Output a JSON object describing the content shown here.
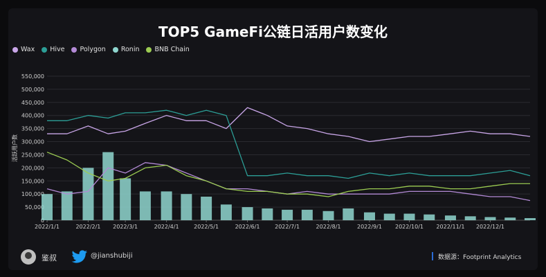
{
  "title": "TOP5 GameFi公链日活用户数变化",
  "colors": {
    "Wax": "#c9a6e8",
    "Hive": "#2c9e96",
    "Polygon": "#b38ad6",
    "Ronin": "#8fd6cf",
    "BNB Chain": "#9ccc52",
    "grid": "#2a2a30",
    "axis_text": "#cfcfcf",
    "background": "#141418"
  },
  "footer": {
    "author": "鉴叔",
    "twitter_handle": "@jianshubiji",
    "source": "数据源：Footprint Analytics"
  },
  "chart_data": {
    "type": "line",
    "ylabel": "活跃用户数",
    "xlabel": "",
    "ylim": [
      0,
      550000
    ],
    "yticks": [
      0,
      50000,
      100000,
      150000,
      200000,
      250000,
      300000,
      350000,
      400000,
      450000,
      500000,
      550000
    ],
    "ytick_labels": [
      "0",
      "50,000",
      "100,000",
      "150,000",
      "200,000",
      "250,000",
      "300,000",
      "350,000",
      "400,000",
      "450,000",
      "500,000",
      "550,000"
    ],
    "xticks": [
      "2022/1/1",
      "2022/2/1",
      "2022/3/1",
      "2022/4/1",
      "2022/5/1",
      "2022/6/1",
      "2022/7/1",
      "2022/8/1",
      "2022/9/1",
      "2022/10/1",
      "2022/11/1",
      "2022/12/1"
    ],
    "grid": true,
    "legend_position": "top-left",
    "x_dates": [
      "2022-01-01",
      "2022-01-16",
      "2022-02-01",
      "2022-02-16",
      "2022-03-01",
      "2022-03-16",
      "2022-04-01",
      "2022-04-16",
      "2022-05-01",
      "2022-05-16",
      "2022-06-01",
      "2022-06-16",
      "2022-07-01",
      "2022-07-16",
      "2022-08-01",
      "2022-08-16",
      "2022-09-01",
      "2022-09-16",
      "2022-10-01",
      "2022-10-16",
      "2022-11-01",
      "2022-11-16",
      "2022-12-01",
      "2022-12-16",
      "2022-12-31"
    ],
    "series": [
      {
        "name": "Wax",
        "style": "line",
        "values": [
          330000,
          330000,
          360000,
          330000,
          340000,
          370000,
          400000,
          380000,
          380000,
          350000,
          430000,
          400000,
          360000,
          350000,
          330000,
          320000,
          300000,
          310000,
          320000,
          320000,
          330000,
          340000,
          330000,
          330000,
          320000
        ]
      },
      {
        "name": "Hive",
        "style": "line",
        "values": [
          380000,
          380000,
          400000,
          390000,
          410000,
          410000,
          420000,
          400000,
          420000,
          400000,
          170000,
          170000,
          180000,
          170000,
          170000,
          160000,
          180000,
          170000,
          180000,
          170000,
          170000,
          170000,
          180000,
          190000,
          170000
        ]
      },
      {
        "name": "Polygon",
        "style": "line",
        "values": [
          120000,
          100000,
          110000,
          200000,
          180000,
          220000,
          210000,
          180000,
          150000,
          120000,
          120000,
          110000,
          100000,
          110000,
          100000,
          100000,
          100000,
          100000,
          110000,
          110000,
          110000,
          100000,
          90000,
          90000,
          75000
        ]
      },
      {
        "name": "Ronin",
        "style": "bar",
        "values": [
          100000,
          110000,
          200000,
          260000,
          160000,
          110000,
          110000,
          100000,
          90000,
          60000,
          50000,
          45000,
          40000,
          40000,
          35000,
          45000,
          30000,
          25000,
          25000,
          22000,
          18000,
          15000,
          12000,
          10000,
          8000
        ]
      },
      {
        "name": "BNB Chain",
        "style": "line",
        "values": [
          260000,
          230000,
          180000,
          150000,
          160000,
          200000,
          210000,
          170000,
          150000,
          120000,
          110000,
          110000,
          100000,
          100000,
          90000,
          110000,
          120000,
          120000,
          130000,
          130000,
          120000,
          120000,
          130000,
          140000,
          140000
        ]
      }
    ]
  }
}
